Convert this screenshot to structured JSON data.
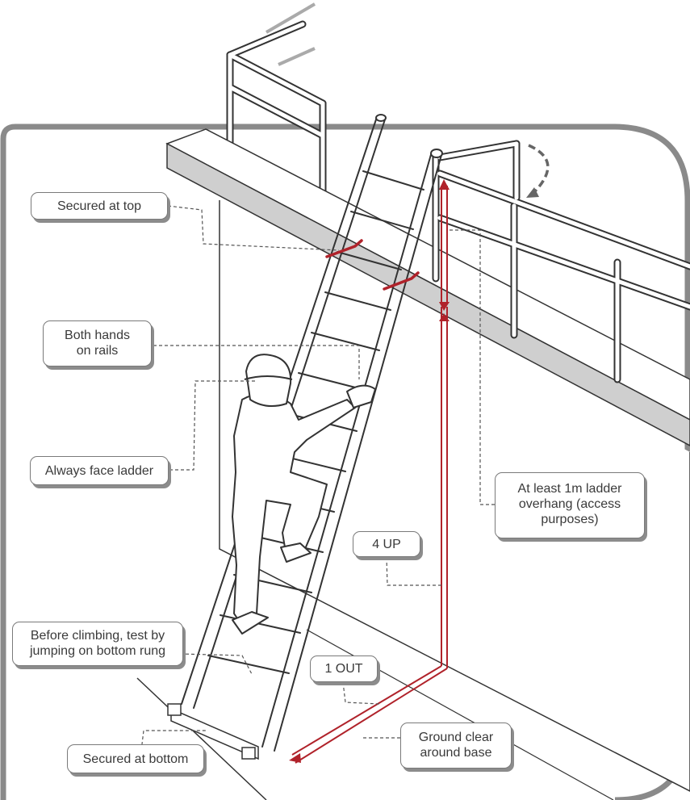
{
  "callouts": {
    "secured_top": "Secured at top",
    "both_hands_line1": "Both hands",
    "both_hands_line2": "on rails",
    "face_ladder": "Always face ladder",
    "test_line1": "Before climbing, test by",
    "test_line2": "jumping on bottom rung",
    "secured_bottom": "Secured at bottom",
    "overhang_line1": "At least 1m ladder",
    "overhang_line2": "overhang (access",
    "overhang_line3": "purposes)",
    "four_up": "4 UP",
    "one_out": "1 OUT",
    "ground_line1": "Ground clear",
    "ground_line2": "around base"
  },
  "colors": {
    "frame": "#8a8a8a",
    "line": "#333333",
    "accent_red": "#b0222a",
    "platform_shade": "#cfcfcf",
    "callout_shadow": "#8c8c8c"
  }
}
